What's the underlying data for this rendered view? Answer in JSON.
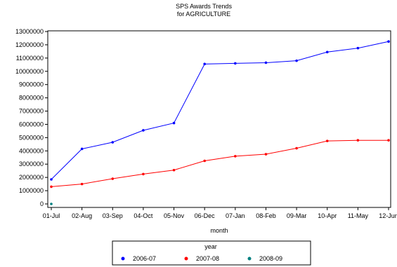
{
  "chart_data": {
    "type": "line",
    "title": "SPS Awards Trends",
    "subtitle": "for AGRICULTURE",
    "xlabel": "month",
    "ylabel": "",
    "categories": [
      "01-Jul",
      "02-Aug",
      "03-Sep",
      "04-Oct",
      "05-Nov",
      "06-Dec",
      "07-Jan",
      "08-Feb",
      "09-Mar",
      "10-Apr",
      "11-May",
      "12-Jun"
    ],
    "ylim": [
      0,
      13000000
    ],
    "yticks": [
      "0",
      "1000000",
      "2000000",
      "3000000",
      "4000000",
      "5000000",
      "6000000",
      "7000000",
      "8000000",
      "9000000",
      "10000000",
      "11000000",
      "12000000",
      "13000000"
    ],
    "grid": false,
    "legend": {
      "title": "year",
      "placement": "bottom"
    },
    "series": [
      {
        "name": "2006-07",
        "color": "#0000ff",
        "values": [
          1850000,
          4150000,
          4650000,
          5550000,
          6100000,
          10550000,
          10600000,
          10650000,
          10800000,
          11450000,
          11750000,
          12250000
        ]
      },
      {
        "name": "2007-08",
        "color": "#ff0000",
        "values": [
          1300000,
          1500000,
          1900000,
          2250000,
          2550000,
          3250000,
          3600000,
          3750000,
          4200000,
          4750000,
          4800000,
          4800000
        ]
      },
      {
        "name": "2008-09",
        "color": "#008080",
        "values": [
          0,
          null,
          null,
          null,
          null,
          null,
          null,
          null,
          null,
          null,
          null,
          null
        ]
      }
    ]
  }
}
